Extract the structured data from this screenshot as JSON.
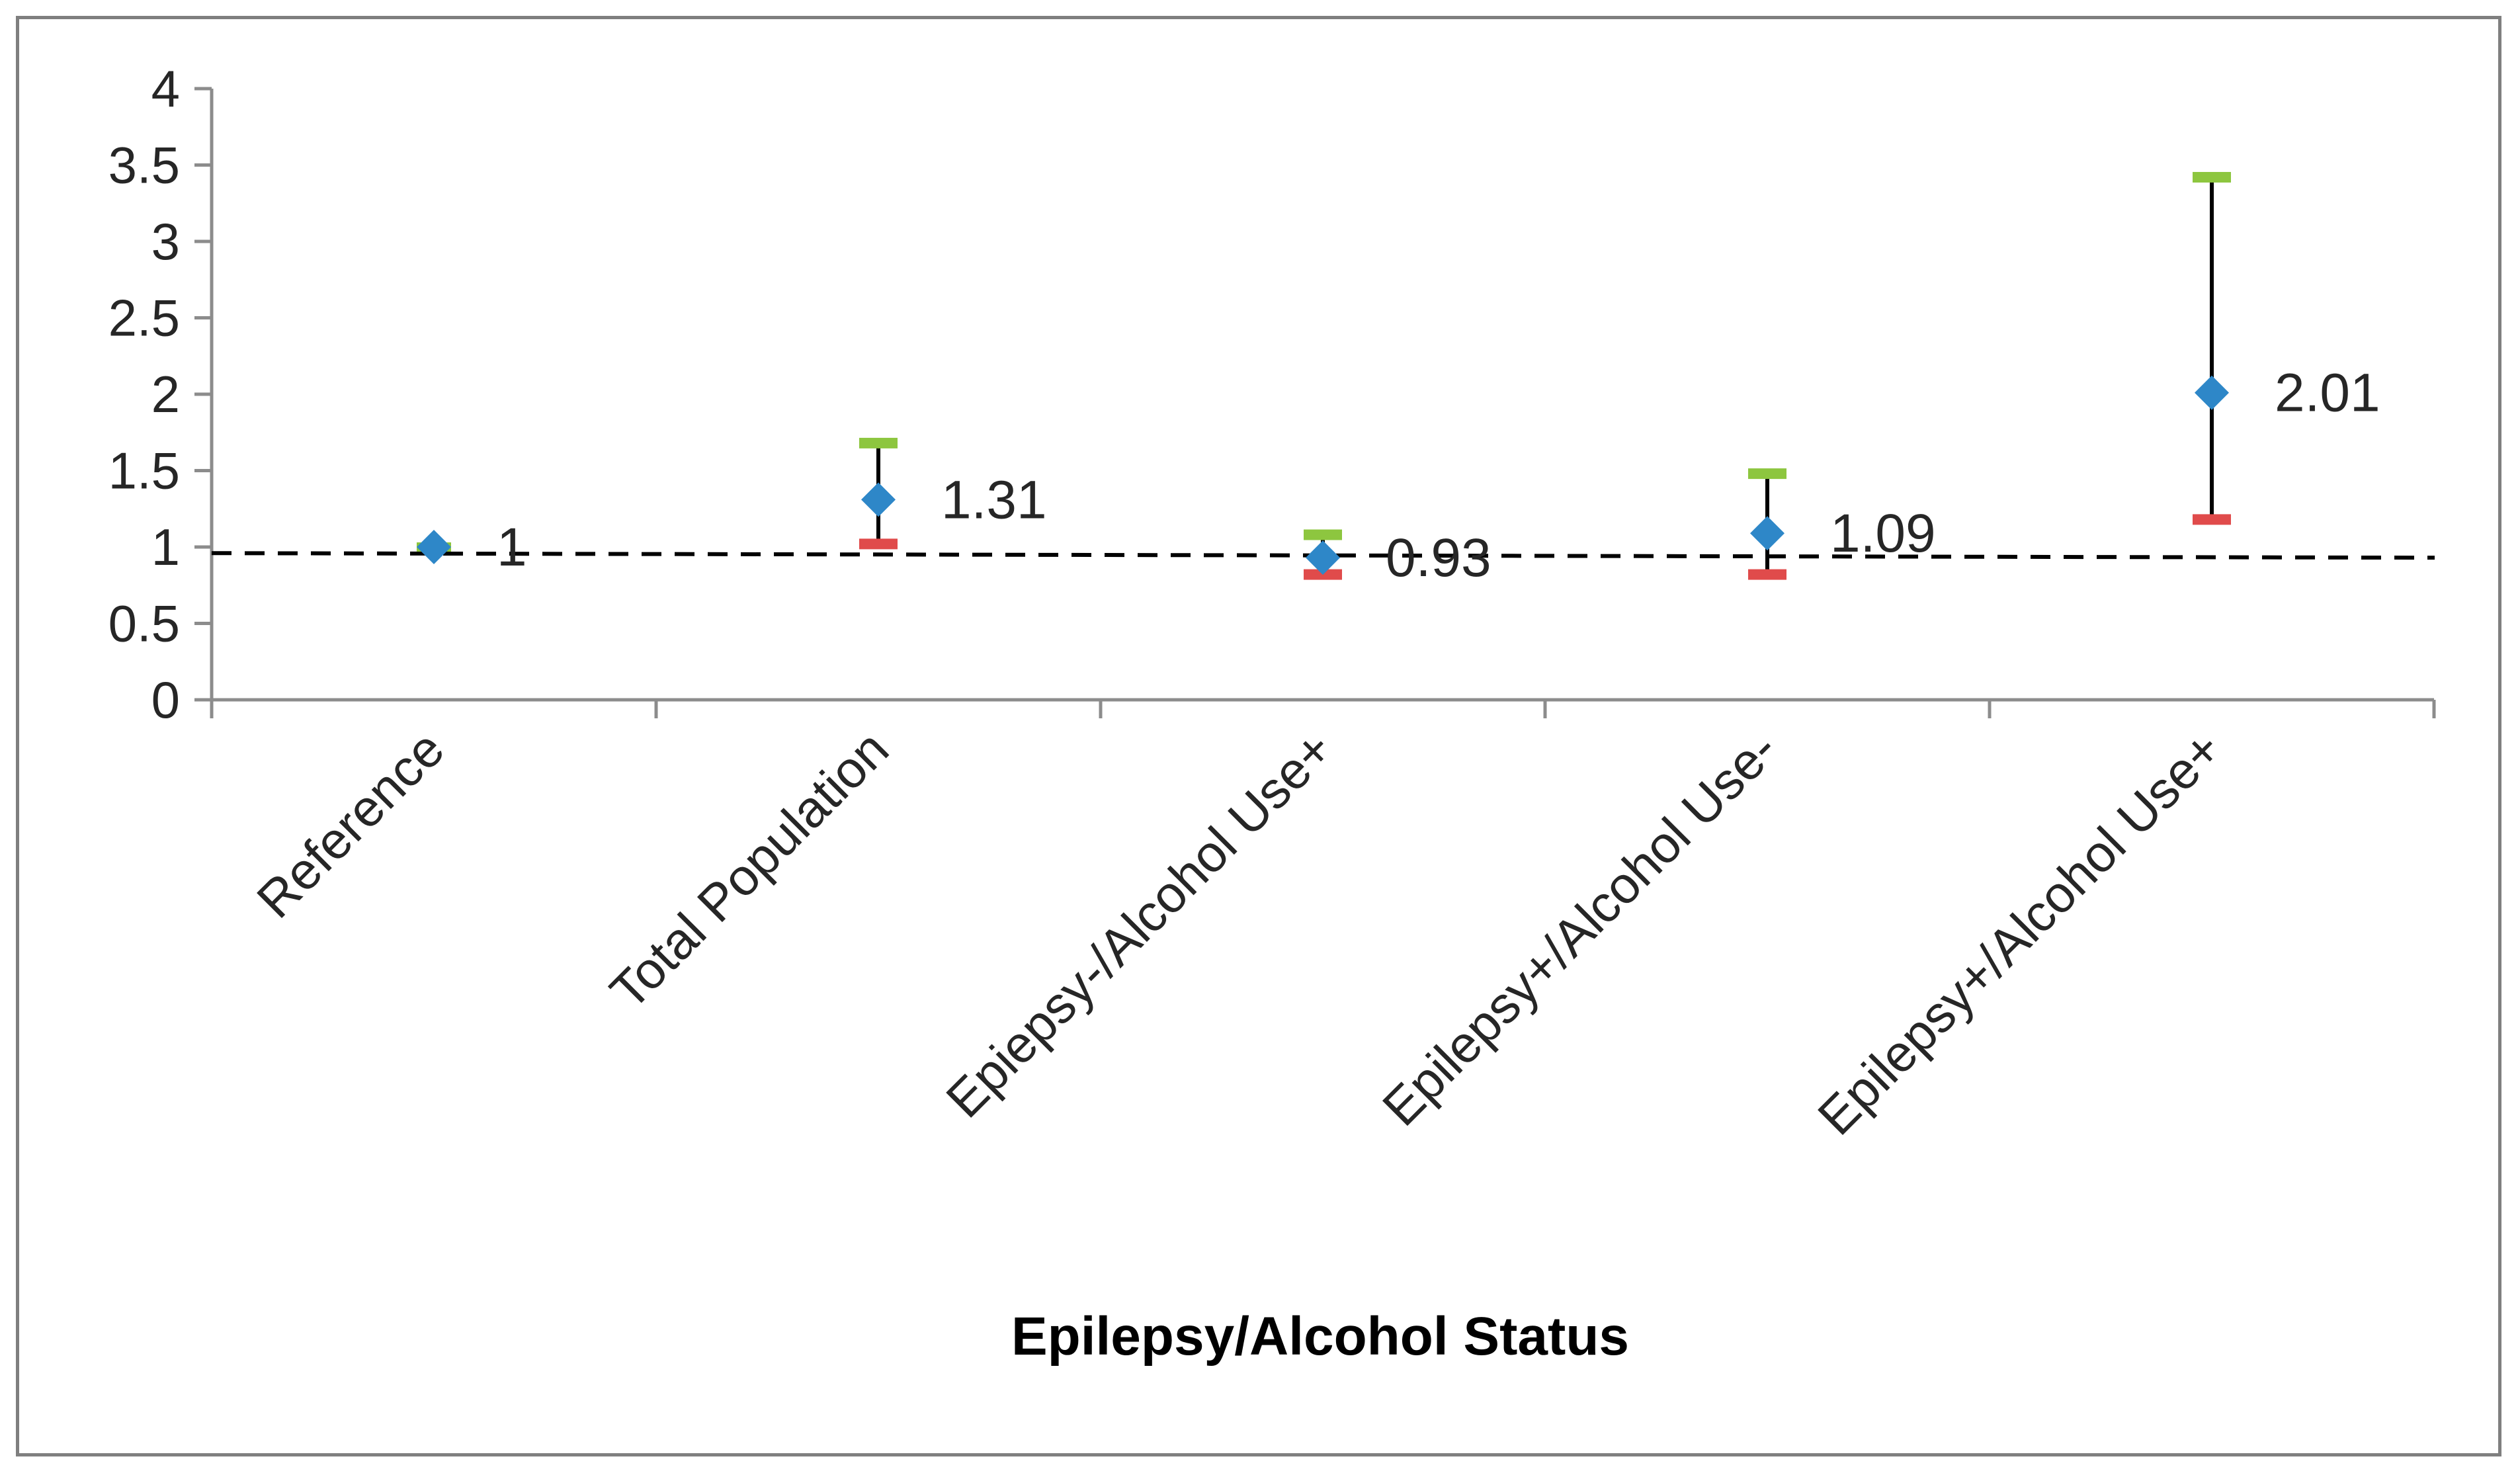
{
  "chart_data": {
    "type": "scatter",
    "title": "",
    "xlabel": "Epilepsy/Alcohol Status",
    "ylabel": "",
    "ylim": [
      0,
      4
    ],
    "yticks": [
      0,
      0.5,
      1,
      1.5,
      2,
      2.5,
      3,
      3.5,
      4
    ],
    "ytick_labels": [
      "0",
      "0.5",
      "1",
      "1.5",
      "2",
      "2.5",
      "3",
      "3.5",
      "4"
    ],
    "categories": [
      "Reference",
      "Total Population",
      "Epiepsy-/Alcohol Use+",
      "Epilepsy+/Alcohol Use-",
      "Epilepsy+/Alcohol Use+"
    ],
    "values": [
      1,
      1.31,
      0.93,
      1.09,
      2.01
    ],
    "data_labels": [
      "1",
      "1.31",
      "0.93",
      "1.09",
      "2.01"
    ],
    "upper": [
      1,
      1.68,
      1.08,
      1.48,
      3.42
    ],
    "lower": [
      1,
      1.02,
      0.82,
      0.82,
      1.18
    ],
    "reference_line": {
      "start": 0.96,
      "end": 0.93,
      "style": "dashed"
    },
    "grid": false,
    "legend": "none",
    "colors": {
      "marker": "#2e87c8",
      "upper_cap": "#8dc63f",
      "lower_cap": "#e04b4b",
      "error_bar": "#000000",
      "axis": "#8c8c8c",
      "reference_line": "#000000",
      "border": "#7f7f7f"
    }
  }
}
